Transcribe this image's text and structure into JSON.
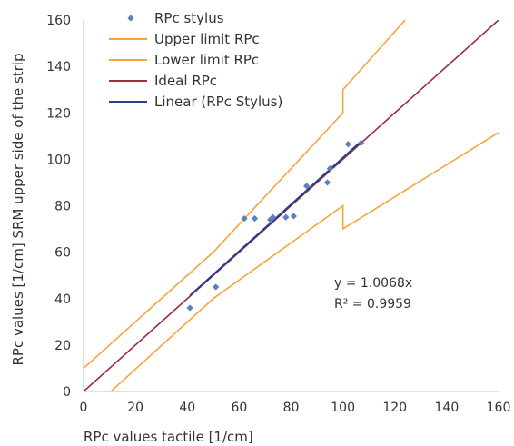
{
  "chart_data": {
    "type": "scatter",
    "xlabel": "RPc values tactile [1/cm]",
    "ylabel": "RPc values [1/cm] SRM upper side of the strip",
    "xlim": [
      0,
      160
    ],
    "ylim": [
      0,
      160
    ],
    "xticks": [
      0,
      20,
      40,
      60,
      80,
      100,
      120,
      140,
      160
    ],
    "yticks": [
      0,
      20,
      40,
      60,
      80,
      100,
      120,
      140,
      160
    ],
    "grid": false,
    "legend_position": "top-left",
    "series": [
      {
        "name": "RPc stylus",
        "kind": "scatter",
        "color": "#5b7fbf",
        "marker": "diamond",
        "x": [
          41,
          51,
          62,
          66,
          72,
          73,
          78,
          81,
          86,
          94,
          95,
          102,
          107
        ],
        "y": [
          36,
          45,
          74.5,
          74.5,
          74,
          75,
          75,
          75.5,
          88.5,
          90,
          96,
          106.5,
          107
        ]
      },
      {
        "name": "Upper limit RPc",
        "kind": "line",
        "color": "#f4a63a",
        "x": [
          0,
          50,
          100,
          100,
          124
        ],
        "y": [
          10,
          60,
          120,
          130,
          160
        ]
      },
      {
        "name": "Lower limit RPc",
        "kind": "line",
        "color": "#f4a63a",
        "x": [
          10.5,
          50,
          100,
          100,
          160
        ],
        "y": [
          0,
          40,
          80,
          70,
          111.5
        ]
      },
      {
        "name": "Ideal RPc",
        "kind": "line",
        "color": "#9b2b3f",
        "x": [
          0,
          160
        ],
        "y": [
          0,
          160
        ]
      },
      {
        "name": "Linear (RPc Stylus)",
        "kind": "line",
        "color": "#2b3d8f",
        "x": [
          41,
          107
        ],
        "y": [
          41.28,
          107.73
        ]
      }
    ],
    "annotations": [
      "y = 1.0068x",
      "R² = 0.9959"
    ]
  }
}
